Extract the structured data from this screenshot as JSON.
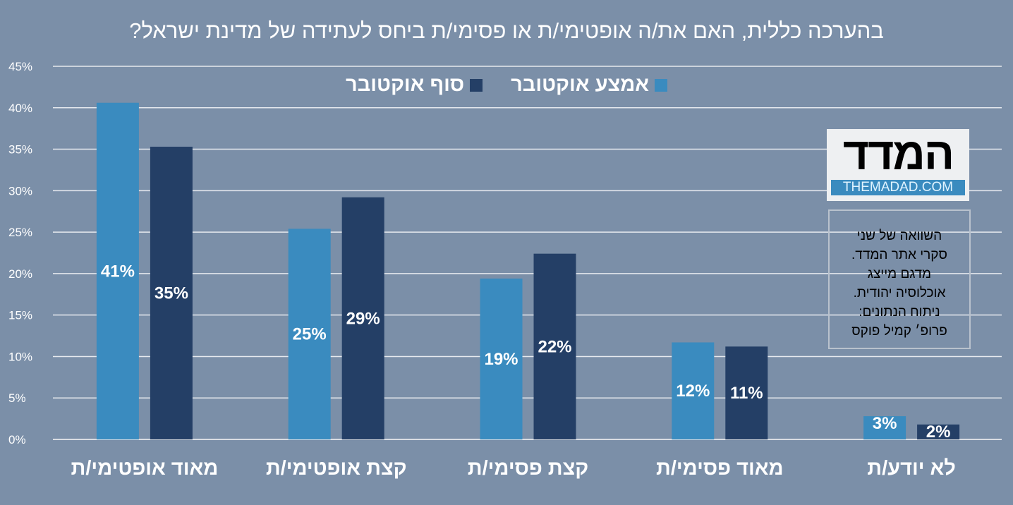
{
  "chart_data": {
    "type": "bar",
    "title": "בהערכה כללית, האם את/ה אופטימי/ת או פסימי/ת ביחס לעתידה של מדינת ישראל?",
    "categories": [
      "מאוד אופטימי/ת",
      "קצת אופטימי/ת",
      "קצת פסימי/ת",
      "מאוד פסימי/ת",
      "לא יודע/ת"
    ],
    "series": [
      {
        "name": "אמצע אוקטובר",
        "color": "#3a8bbf",
        "values": [
          40.6,
          25.4,
          19.4,
          11.7,
          2.8
        ],
        "labels": [
          "41%",
          "25%",
          "19%",
          "12%",
          "3%"
        ]
      },
      {
        "name": "סוף אוקטובר",
        "color": "#243f66",
        "values": [
          35.3,
          29.2,
          22.4,
          11.2,
          1.8
        ],
        "labels": [
          "35%",
          "29%",
          "22%",
          "11%",
          "2%"
        ]
      }
    ],
    "ylim": [
      0,
      45
    ],
    "yticks": [
      "0%",
      "5%",
      "10%",
      "15%",
      "20%",
      "25%",
      "30%",
      "35%",
      "40%",
      "45%"
    ],
    "grid": true,
    "legend_position": "top-center"
  },
  "logo": {
    "hebrew": "המדד",
    "english": "THEMADAD.COM"
  },
  "note": [
    "השוואה של שני",
    "סקרי אתר המדד.",
    "מדגם מייצג",
    "אוכלוסיה יהודית.",
    "ניתוח הנתונים:",
    "פרופ׳ קמיל פוקס"
  ]
}
